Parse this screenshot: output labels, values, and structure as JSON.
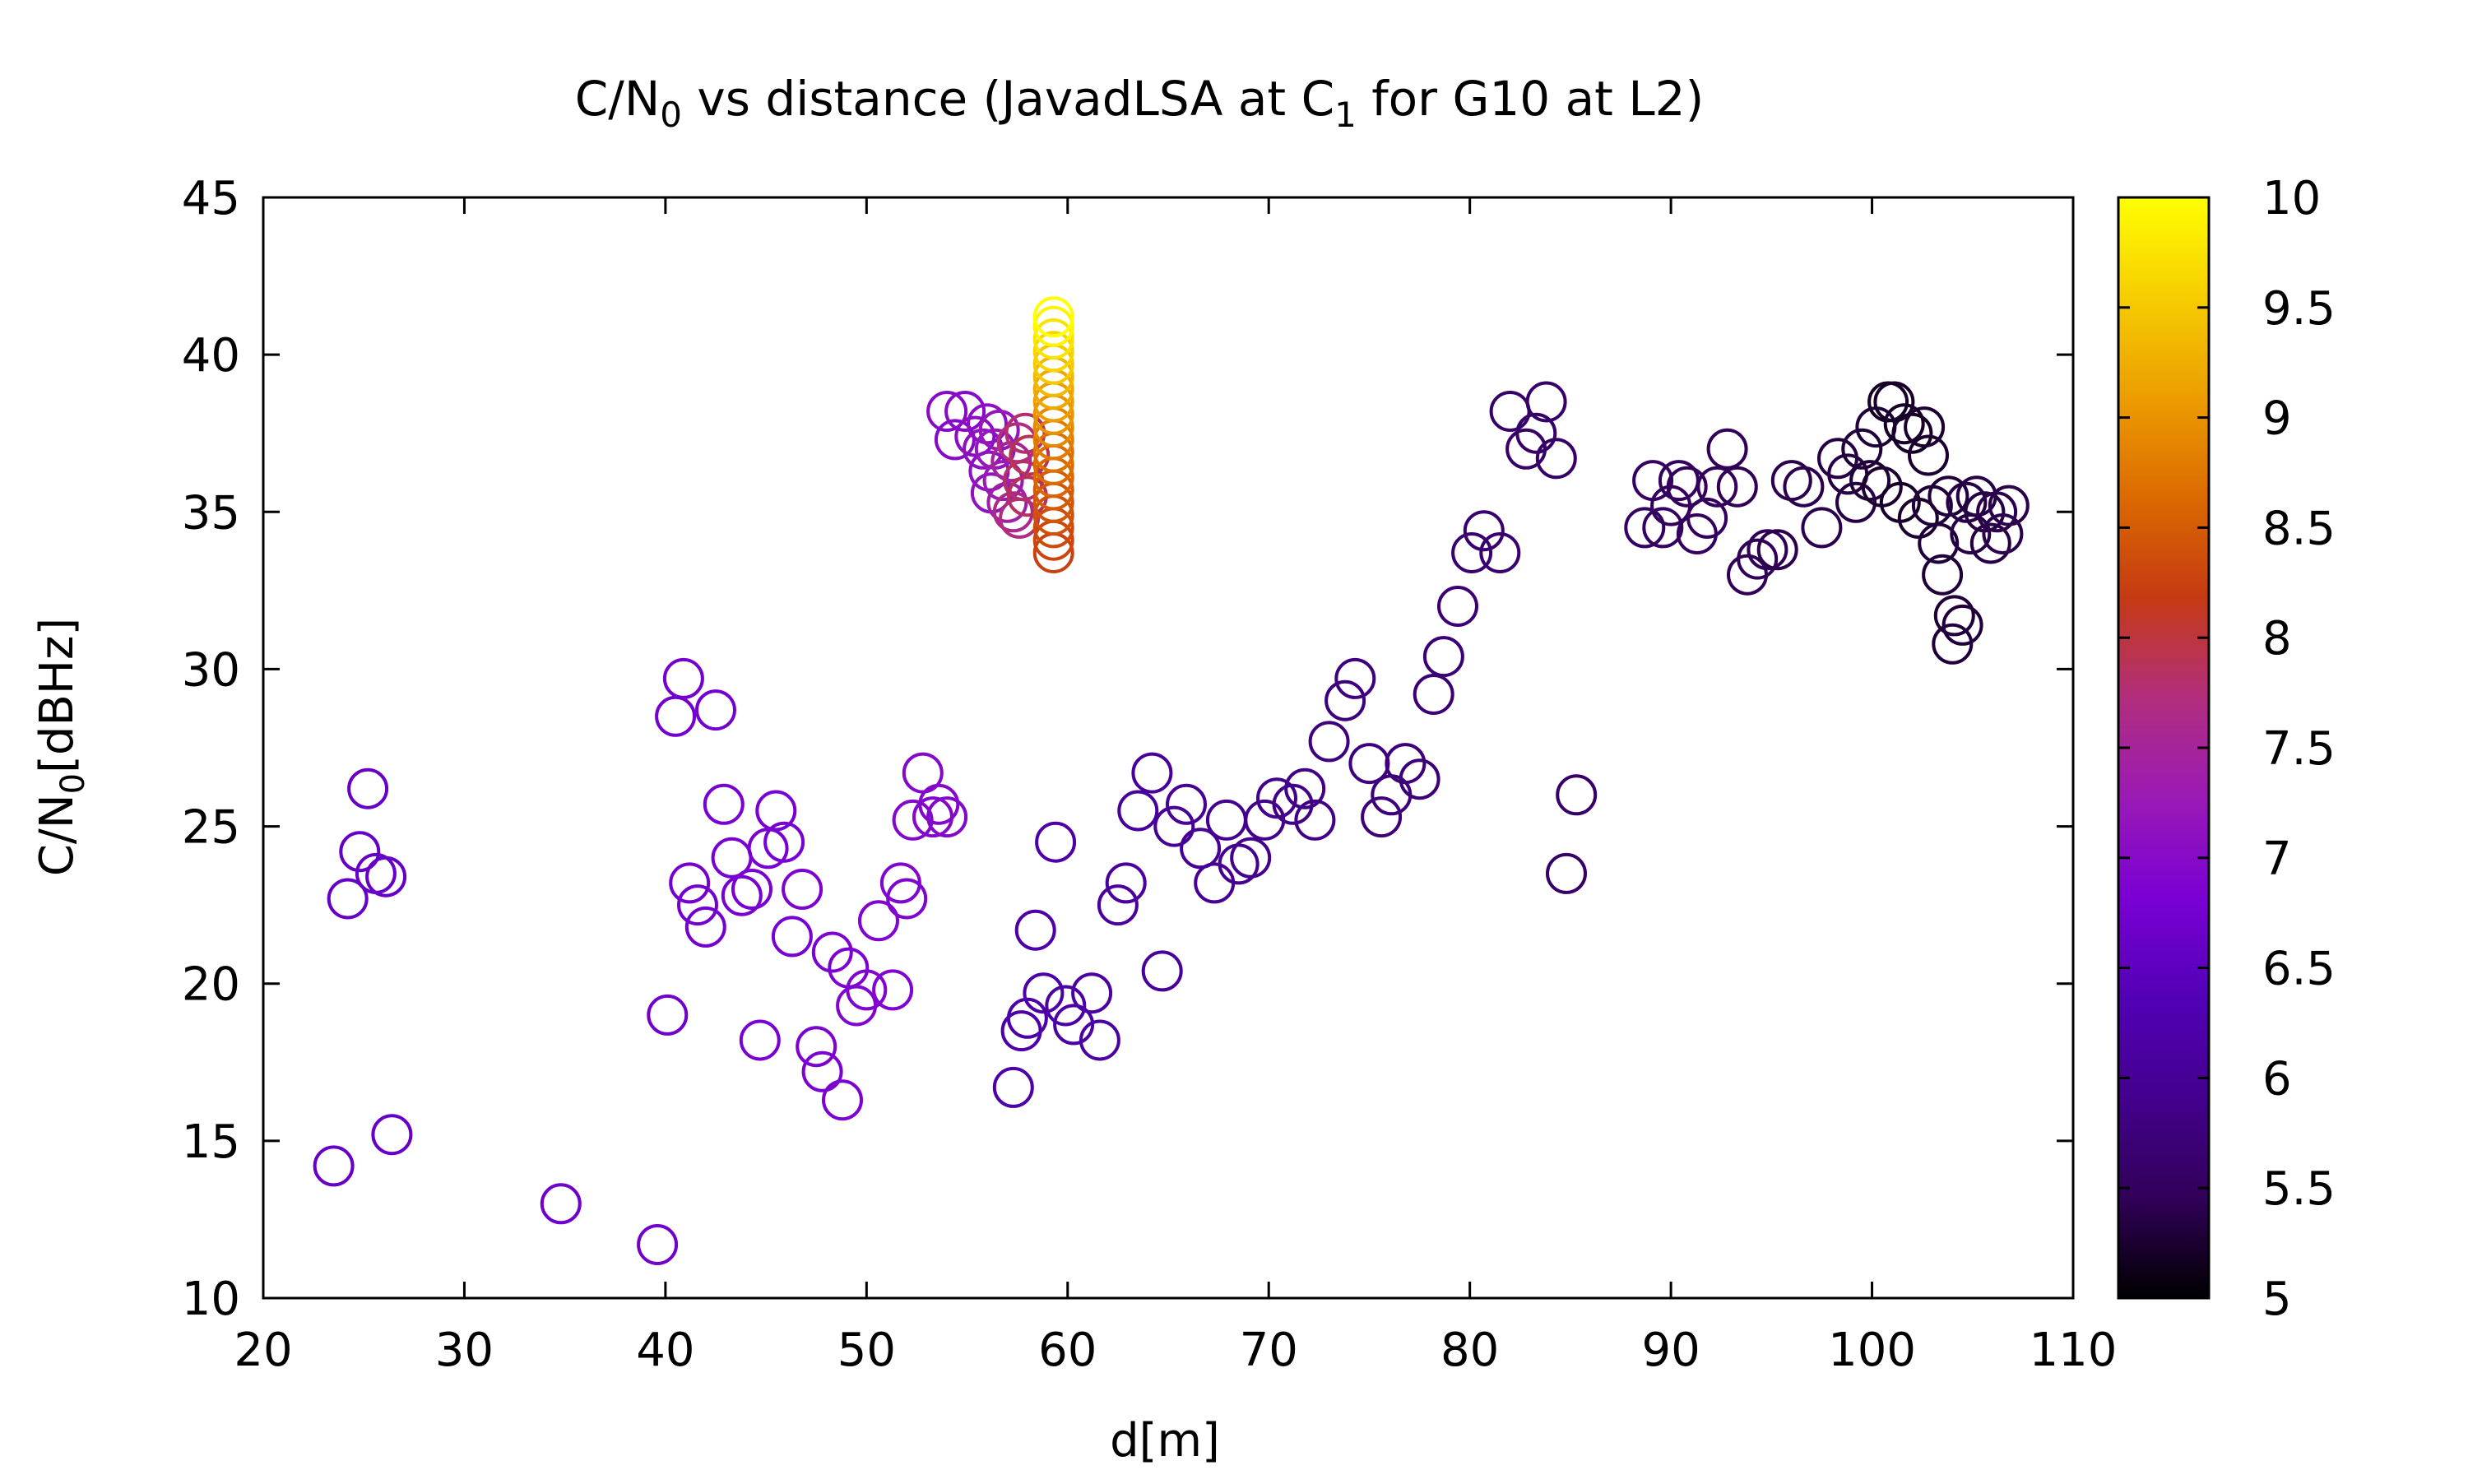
{
  "chart_data": {
    "type": "scatter",
    "title": {
      "pre": "C/N",
      "sub1": "0",
      "mid": " vs distance (JavadLSA at C",
      "sub2": "1",
      "post": " for G10 at L2)"
    },
    "xlabel": "d[m]",
    "ylabel": {
      "main": "C/N",
      "sub": "0",
      "unit": "[dBHz]"
    },
    "xlim": [
      20,
      110
    ],
    "ylim": [
      10,
      45
    ],
    "xticks": [
      20,
      30,
      40,
      50,
      60,
      70,
      80,
      90,
      100,
      110
    ],
    "yticks": [
      10,
      15,
      20,
      25,
      30,
      35,
      40,
      45
    ],
    "colorbar": {
      "range": [
        5,
        10
      ],
      "ticks": [
        "5",
        "5.5",
        "6",
        "6.5",
        "7",
        "7.5",
        "8",
        "8.5",
        "9",
        "9.5",
        "10"
      ],
      "colors": [
        "#000000",
        "#310058",
        "#43008d",
        "#5200b6",
        "#7a00d4",
        "#9a1ab5",
        "#b12e7d",
        "#c53a13",
        "#db6a00",
        "#ec9d00",
        "#f6cd00",
        "#ffff00"
      ]
    },
    "grid": false,
    "legend": "none",
    "points": [
      [
        23.5,
        14.2,
        6.6
      ],
      [
        24.2,
        22.7,
        6.6
      ],
      [
        24.8,
        24.2,
        6.6
      ],
      [
        25.2,
        26.2,
        6.6
      ],
      [
        25.6,
        23.5,
        6.6
      ],
      [
        26.1,
        23.4,
        6.6
      ],
      [
        26.4,
        15.2,
        6.6
      ],
      [
        34.8,
        13.0,
        6.7
      ],
      [
        39.6,
        11.7,
        6.7
      ],
      [
        40.1,
        19.0,
        6.7
      ],
      [
        40.5,
        28.5,
        6.75
      ],
      [
        40.9,
        29.7,
        6.75
      ],
      [
        41.2,
        23.2,
        6.75
      ],
      [
        41.6,
        22.5,
        6.75
      ],
      [
        42.0,
        21.8,
        6.75
      ],
      [
        42.5,
        28.7,
        6.75
      ],
      [
        42.9,
        25.7,
        6.8
      ],
      [
        43.3,
        24.0,
        6.8
      ],
      [
        43.8,
        22.8,
        6.8
      ],
      [
        44.3,
        23.0,
        6.8
      ],
      [
        44.7,
        18.2,
        6.8
      ],
      [
        45.1,
        24.3,
        6.8
      ],
      [
        45.5,
        25.5,
        6.8
      ],
      [
        45.9,
        24.5,
        6.8
      ],
      [
        46.3,
        21.5,
        6.8
      ],
      [
        46.8,
        23.0,
        6.85
      ],
      [
        47.5,
        18.0,
        6.85
      ],
      [
        47.8,
        17.2,
        6.85
      ],
      [
        48.3,
        21.0,
        6.85
      ],
      [
        48.8,
        16.3,
        6.85
      ],
      [
        49.1,
        20.5,
        6.85
      ],
      [
        49.5,
        19.3,
        6.9
      ],
      [
        50.0,
        19.8,
        6.9
      ],
      [
        50.6,
        22.0,
        6.9
      ],
      [
        51.3,
        19.8,
        6.9
      ],
      [
        51.7,
        23.2,
        6.9
      ],
      [
        52.0,
        22.7,
        6.9
      ],
      [
        52.3,
        25.2,
        6.95
      ],
      [
        52.8,
        26.7,
        6.95
      ],
      [
        53.3,
        25.3,
        6.95
      ],
      [
        53.6,
        25.7,
        6.95
      ],
      [
        54.0,
        25.3,
        6.95
      ],
      [
        54.0,
        38.2,
        7.0
      ],
      [
        54.4,
        37.3,
        7.0
      ],
      [
        54.9,
        38.2,
        7.0
      ],
      [
        55.4,
        37.4,
        7.05
      ],
      [
        55.8,
        37.0,
        7.1
      ],
      [
        56.0,
        37.8,
        7.1
      ],
      [
        56.1,
        36.3,
        7.1
      ],
      [
        56.2,
        35.6,
        7.15
      ],
      [
        56.4,
        37.0,
        7.2
      ],
      [
        56.6,
        37.6,
        7.2
      ],
      [
        56.8,
        36.0,
        7.3
      ],
      [
        57.0,
        35.3,
        7.4
      ],
      [
        57.2,
        36.6,
        7.5
      ],
      [
        57.3,
        35.0,
        7.6
      ],
      [
        57.5,
        37.2,
        7.7
      ],
      [
        57.6,
        34.8,
        7.7
      ],
      [
        57.8,
        36.0,
        7.8
      ],
      [
        57.9,
        37.5,
        7.8
      ],
      [
        58.0,
        35.5,
        7.85
      ],
      [
        58.1,
        36.8,
        7.9
      ],
      [
        59.3,
        33.7,
        8.25
      ],
      [
        59.3,
        34.1,
        8.3
      ],
      [
        59.3,
        34.5,
        8.35
      ],
      [
        59.3,
        34.9,
        8.4
      ],
      [
        59.3,
        35.3,
        8.45
      ],
      [
        59.3,
        35.7,
        8.5
      ],
      [
        59.3,
        36.1,
        8.6
      ],
      [
        59.3,
        36.5,
        8.65
      ],
      [
        59.3,
        36.9,
        8.7
      ],
      [
        59.3,
        37.3,
        8.8
      ],
      [
        59.3,
        37.7,
        8.9
      ],
      [
        59.3,
        38.1,
        9.0
      ],
      [
        59.3,
        38.5,
        9.1
      ],
      [
        59.3,
        38.9,
        9.2
      ],
      [
        59.3,
        39.3,
        9.35
      ],
      [
        59.3,
        39.7,
        9.5
      ],
      [
        59.3,
        40.1,
        9.6
      ],
      [
        59.3,
        40.5,
        9.75
      ],
      [
        59.3,
        40.9,
        9.9
      ],
      [
        59.3,
        41.2,
        10.0
      ],
      [
        57.3,
        16.7,
        6.2
      ],
      [
        57.7,
        18.5,
        6.2
      ],
      [
        58.0,
        18.9,
        6.2
      ],
      [
        58.4,
        21.7,
        6.2
      ],
      [
        58.8,
        19.7,
        6.2
      ],
      [
        59.4,
        24.5,
        6.2
      ],
      [
        59.9,
        19.3,
        6.15
      ],
      [
        60.3,
        18.7,
        6.15
      ],
      [
        61.2,
        19.7,
        6.15
      ],
      [
        61.6,
        18.2,
        6.15
      ],
      [
        62.5,
        22.5,
        6.1
      ],
      [
        62.9,
        23.2,
        6.1
      ],
      [
        63.5,
        25.5,
        6.05
      ],
      [
        64.2,
        26.7,
        6.05
      ],
      [
        64.7,
        20.4,
        6.05
      ],
      [
        65.3,
        25.0,
        6.0
      ],
      [
        65.9,
        25.7,
        6.0
      ],
      [
        66.6,
        24.3,
        6.0
      ],
      [
        67.3,
        23.2,
        6.0
      ],
      [
        67.9,
        25.2,
        5.95
      ],
      [
        68.5,
        23.8,
        5.95
      ],
      [
        69.1,
        24.0,
        5.9
      ],
      [
        69.8,
        25.2,
        5.9
      ],
      [
        70.4,
        25.9,
        5.9
      ],
      [
        71.2,
        25.7,
        5.85
      ],
      [
        71.8,
        26.2,
        5.85
      ],
      [
        72.3,
        25.2,
        5.85
      ],
      [
        73.0,
        27.7,
        5.8
      ],
      [
        73.8,
        29.0,
        5.8
      ],
      [
        74.3,
        29.7,
        5.8
      ],
      [
        75.0,
        27.0,
        5.8
      ],
      [
        75.6,
        25.3,
        5.75
      ],
      [
        76.1,
        26.0,
        5.75
      ],
      [
        76.8,
        27.0,
        5.75
      ],
      [
        77.5,
        26.5,
        5.7
      ],
      [
        78.2,
        29.2,
        5.7
      ],
      [
        78.7,
        30.4,
        5.7
      ],
      [
        79.4,
        32.0,
        5.7
      ],
      [
        80.1,
        33.7,
        5.65
      ],
      [
        80.7,
        34.4,
        5.65
      ],
      [
        81.5,
        33.7,
        5.65
      ],
      [
        82.0,
        38.2,
        5.6
      ],
      [
        82.8,
        37.0,
        5.6
      ],
      [
        83.3,
        37.5,
        5.6
      ],
      [
        83.8,
        38.5,
        5.6
      ],
      [
        84.3,
        36.7,
        5.6
      ],
      [
        84.8,
        23.5,
        5.6
      ],
      [
        85.3,
        26.0,
        5.6
      ],
      [
        88.7,
        34.5,
        5.55
      ],
      [
        89.1,
        36.0,
        5.55
      ],
      [
        89.6,
        34.5,
        5.55
      ],
      [
        90.0,
        35.2,
        5.5
      ],
      [
        90.4,
        36.0,
        5.5
      ],
      [
        90.8,
        35.8,
        5.5
      ],
      [
        91.3,
        34.3,
        5.5
      ],
      [
        91.8,
        34.8,
        5.5
      ],
      [
        92.3,
        35.8,
        5.5
      ],
      [
        92.8,
        37.0,
        5.45
      ],
      [
        93.3,
        35.8,
        5.45
      ],
      [
        93.8,
        33.0,
        5.45
      ],
      [
        94.3,
        33.5,
        5.45
      ],
      [
        94.8,
        33.8,
        5.45
      ],
      [
        95.3,
        33.8,
        5.4
      ],
      [
        96.0,
        36.0,
        5.4
      ],
      [
        96.6,
        35.8,
        5.4
      ],
      [
        97.5,
        34.5,
        5.4
      ],
      [
        98.3,
        36.7,
        5.35
      ],
      [
        98.8,
        36.2,
        5.35
      ],
      [
        99.2,
        35.3,
        5.35
      ],
      [
        99.5,
        37.0,
        5.3
      ],
      [
        99.9,
        36.0,
        5.3
      ],
      [
        100.2,
        37.7,
        5.3
      ],
      [
        100.5,
        35.8,
        5.25
      ],
      [
        100.8,
        38.5,
        5.2
      ],
      [
        101.1,
        38.5,
        5.2
      ],
      [
        101.4,
        35.3,
        5.2
      ],
      [
        101.6,
        37.8,
        5.2
      ],
      [
        102.0,
        37.5,
        5.2
      ],
      [
        102.3,
        34.8,
        5.25
      ],
      [
        102.6,
        37.7,
        5.25
      ],
      [
        102.8,
        36.8,
        5.25
      ],
      [
        103.0,
        35.2,
        5.3
      ],
      [
        103.3,
        34.0,
        5.3
      ],
      [
        103.5,
        33.0,
        5.3
      ],
      [
        103.8,
        35.5,
        5.3
      ],
      [
        104.0,
        30.8,
        5.3
      ],
      [
        104.1,
        31.7,
        5.3
      ],
      [
        104.5,
        31.4,
        5.3
      ],
      [
        104.7,
        35.3,
        5.35
      ],
      [
        104.9,
        34.3,
        5.35
      ],
      [
        105.2,
        35.5,
        5.35
      ],
      [
        105.6,
        35.0,
        5.35
      ],
      [
        105.9,
        34.0,
        5.35
      ],
      [
        106.2,
        35.0,
        5.4
      ],
      [
        106.5,
        34.3,
        5.4
      ],
      [
        106.8,
        35.2,
        5.4
      ]
    ]
  }
}
